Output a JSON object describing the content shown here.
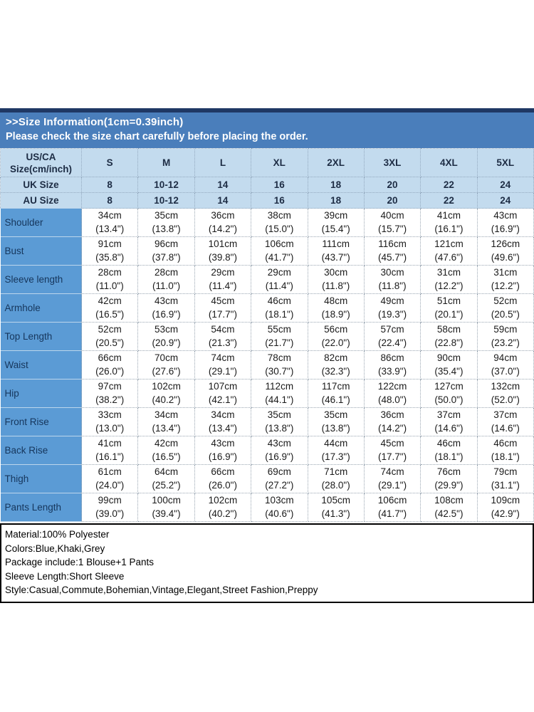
{
  "header": {
    "title": ">>Size Information(1cm=0.39inch)",
    "subtitle": "Please check the size chart carefully before placing the order."
  },
  "table": {
    "corner": {
      "line1": "US/CA",
      "line2": "Size(cm/inch)"
    },
    "size_labels": [
      "S",
      "M",
      "L",
      "XL",
      "2XL",
      "3XL",
      "4XL",
      "5XL"
    ],
    "uk_row": {
      "label": "UK Size",
      "values": [
        "8",
        "10-12",
        "14",
        "16",
        "18",
        "20",
        "22",
        "24"
      ]
    },
    "au_row": {
      "label": "AU Size",
      "values": [
        "8",
        "10-12",
        "14",
        "16",
        "18",
        "20",
        "22",
        "24"
      ]
    },
    "rows": [
      {
        "label": "Shoulder",
        "cm": [
          "34cm",
          "35cm",
          "36cm",
          "38cm",
          "39cm",
          "40cm",
          "41cm",
          "43cm"
        ],
        "inch": [
          "(13.4\")",
          "(13.8\")",
          "(14.2\")",
          "(15.0\")",
          "(15.4\")",
          "(15.7\")",
          "(16.1\")",
          "(16.9\")"
        ]
      },
      {
        "label": "Bust",
        "cm": [
          "91cm",
          "96cm",
          "101cm",
          "106cm",
          "111cm",
          "116cm",
          "121cm",
          "126cm"
        ],
        "inch": [
          "(35.8\")",
          "(37.8\")",
          "(39.8\")",
          "(41.7\")",
          "(43.7\")",
          "(45.7\")",
          "(47.6\")",
          "(49.6\")"
        ]
      },
      {
        "label": "Sleeve length",
        "cm": [
          "28cm",
          "28cm",
          "29cm",
          "29cm",
          "30cm",
          "30cm",
          "31cm",
          "31cm"
        ],
        "inch": [
          "(11.0\")",
          "(11.0\")",
          "(11.4\")",
          "(11.4\")",
          "(11.8\")",
          "(11.8\")",
          "(12.2\")",
          "(12.2\")"
        ]
      },
      {
        "label": "Armhole",
        "cm": [
          "42cm",
          "43cm",
          "45cm",
          "46cm",
          "48cm",
          "49cm",
          "51cm",
          "52cm"
        ],
        "inch": [
          "(16.5\")",
          "(16.9\")",
          "(17.7\")",
          "(18.1\")",
          "(18.9\")",
          "(19.3\")",
          "(20.1\")",
          "(20.5\")"
        ]
      },
      {
        "label": "Top Length",
        "cm": [
          "52cm",
          "53cm",
          "54cm",
          "55cm",
          "56cm",
          "57cm",
          "58cm",
          "59cm"
        ],
        "inch": [
          "(20.5\")",
          "(20.9\")",
          "(21.3\")",
          "(21.7\")",
          "(22.0\")",
          "(22.4\")",
          "(22.8\")",
          "(23.2\")"
        ]
      },
      {
        "label": "Waist",
        "cm": [
          "66cm",
          "70cm",
          "74cm",
          "78cm",
          "82cm",
          "86cm",
          "90cm",
          "94cm"
        ],
        "inch": [
          "(26.0\")",
          "(27.6\")",
          "(29.1\")",
          "(30.7\")",
          "(32.3\")",
          "(33.9\")",
          "(35.4\")",
          "(37.0\")"
        ]
      },
      {
        "label": "Hip",
        "cm": [
          "97cm",
          "102cm",
          "107cm",
          "112cm",
          "117cm",
          "122cm",
          "127cm",
          "132cm"
        ],
        "inch": [
          "(38.2\")",
          "(40.2\")",
          "(42.1\")",
          "(44.1\")",
          "(46.1\")",
          "(48.0\")",
          "(50.0\")",
          "(52.0\")"
        ]
      },
      {
        "label": "Front Rise",
        "cm": [
          "33cm",
          "34cm",
          "34cm",
          "35cm",
          "35cm",
          "36cm",
          "37cm",
          "37cm"
        ],
        "inch": [
          "(13.0\")",
          "(13.4\")",
          "(13.4\")",
          "(13.8\")",
          "(13.8\")",
          "(14.2\")",
          "(14.6\")",
          "(14.6\")"
        ]
      },
      {
        "label": "Back Rise",
        "cm": [
          "41cm",
          "42cm",
          "43cm",
          "43cm",
          "44cm",
          "45cm",
          "46cm",
          "46cm"
        ],
        "inch": [
          "(16.1\")",
          "(16.5\")",
          "(16.9\")",
          "(16.9\")",
          "(17.3\")",
          "(17.7\")",
          "(18.1\")",
          "(18.1\")"
        ]
      },
      {
        "label": "Thigh",
        "cm": [
          "61cm",
          "64cm",
          "66cm",
          "69cm",
          "71cm",
          "74cm",
          "76cm",
          "79cm"
        ],
        "inch": [
          "(24.0\")",
          "(25.2\")",
          "(26.0\")",
          "(27.2\")",
          "(28.0\")",
          "(29.1\")",
          "(29.9\")",
          "(31.1\")"
        ]
      },
      {
        "label": "Pants Length",
        "cm": [
          "99cm",
          "100cm",
          "102cm",
          "103cm",
          "105cm",
          "106cm",
          "108cm",
          "109cm"
        ],
        "inch": [
          "(39.0\")",
          "(39.4\")",
          "(40.2\")",
          "(40.6\")",
          "(41.3\")",
          "(41.7\")",
          "(42.5\")",
          "(42.9\")"
        ]
      }
    ]
  },
  "details": {
    "lines": [
      "Material:100% Polyester",
      "Colors:Blue,Khaki,Grey",
      "Package include:1 Blouse+1 Pants",
      "Sleeve Length:Short Sleeve",
      "Style:Casual,Commute,Bohemian,Vintage,Elegant,Street Fashion,Preppy"
    ]
  },
  "colors": {
    "navy_strip": "#1f3864",
    "header_band": "#4a7ebb",
    "label_column": "#5b9bd5",
    "light_blue_rows": "#c3dbee"
  }
}
